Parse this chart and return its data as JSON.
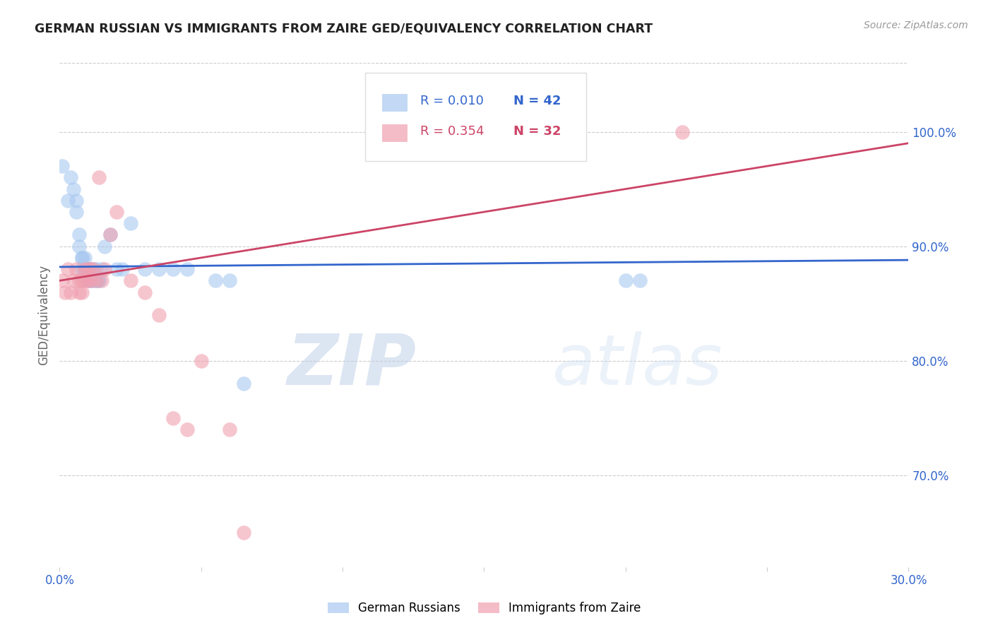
{
  "title": "GERMAN RUSSIAN VS IMMIGRANTS FROM ZAIRE GED/EQUIVALENCY CORRELATION CHART",
  "source": "Source: ZipAtlas.com",
  "ylabel": "GED/Equivalency",
  "xlim": [
    0.0,
    0.3
  ],
  "ylim": [
    0.62,
    1.06
  ],
  "blue_color": "#A8C8F0",
  "pink_color": "#F0A0B0",
  "blue_line_color": "#3366CC",
  "pink_line_color": "#CC4466",
  "legend_R1": "R = 0.010",
  "legend_N1": "N = 42",
  "legend_R2": "R = 0.354",
  "legend_N2": "N = 32",
  "watermark_zip": "ZIP",
  "watermark_atlas": "atlas",
  "blue_points_x": [
    0.001,
    0.003,
    0.004,
    0.005,
    0.006,
    0.006,
    0.007,
    0.007,
    0.008,
    0.008,
    0.008,
    0.009,
    0.009,
    0.009,
    0.01,
    0.01,
    0.01,
    0.011,
    0.011,
    0.011,
    0.012,
    0.012,
    0.013,
    0.013,
    0.013,
    0.014,
    0.014,
    0.015,
    0.016,
    0.018,
    0.02,
    0.022,
    0.025,
    0.03,
    0.035,
    0.04,
    0.045,
    0.055,
    0.06,
    0.065,
    0.2,
    0.205
  ],
  "blue_points_y": [
    0.97,
    0.94,
    0.96,
    0.95,
    0.94,
    0.93,
    0.91,
    0.9,
    0.89,
    0.89,
    0.88,
    0.89,
    0.88,
    0.88,
    0.88,
    0.88,
    0.87,
    0.88,
    0.87,
    0.87,
    0.88,
    0.87,
    0.88,
    0.87,
    0.87,
    0.87,
    0.87,
    0.88,
    0.9,
    0.91,
    0.88,
    0.88,
    0.92,
    0.88,
    0.88,
    0.88,
    0.88,
    0.87,
    0.87,
    0.78,
    0.87,
    0.87
  ],
  "pink_points_x": [
    0.001,
    0.002,
    0.003,
    0.004,
    0.005,
    0.006,
    0.007,
    0.007,
    0.008,
    0.008,
    0.009,
    0.009,
    0.01,
    0.01,
    0.011,
    0.011,
    0.012,
    0.013,
    0.014,
    0.015,
    0.016,
    0.018,
    0.02,
    0.025,
    0.03,
    0.035,
    0.04,
    0.045,
    0.05,
    0.06,
    0.065,
    0.22
  ],
  "pink_points_y": [
    0.87,
    0.86,
    0.88,
    0.86,
    0.87,
    0.88,
    0.87,
    0.86,
    0.87,
    0.86,
    0.88,
    0.87,
    0.88,
    0.87,
    0.88,
    0.87,
    0.88,
    0.87,
    0.96,
    0.87,
    0.88,
    0.91,
    0.93,
    0.87,
    0.86,
    0.84,
    0.75,
    0.74,
    0.8,
    0.74,
    0.65,
    1.0
  ],
  "blue_trendline_x": [
    0.0,
    0.3
  ],
  "blue_trendline_y": [
    0.882,
    0.888
  ],
  "pink_trendline_x": [
    0.0,
    0.3
  ],
  "pink_trendline_y": [
    0.87,
    0.99
  ],
  "yticks": [
    0.7,
    0.8,
    0.9,
    1.0
  ],
  "ytick_labels": [
    "70.0%",
    "80.0%",
    "90.0%",
    "100.0%"
  ],
  "xticks": [
    0.0,
    0.05,
    0.1,
    0.15,
    0.2,
    0.25,
    0.3
  ],
  "xtick_labels_show": [
    "0.0%",
    "30.0%"
  ]
}
